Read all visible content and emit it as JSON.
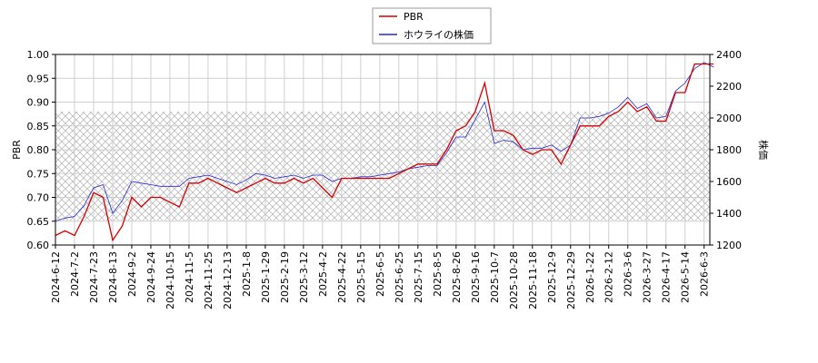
{
  "chart_data": {
    "type": "line",
    "categories": [
      "2024-6-12",
      null,
      "2024-7-2",
      null,
      "2024-7-23",
      null,
      "2024-8-13",
      null,
      "2024-9-2",
      null,
      "2024-9-24",
      null,
      "2024-10-15",
      null,
      "2024-11-5",
      null,
      "2024-11-25",
      null,
      "2024-12-13",
      null,
      "2025-1-8",
      null,
      "2025-1-29",
      null,
      "2025-2-19",
      null,
      "2025-3-12",
      null,
      "2025-4-2",
      null,
      "2025-4-22",
      null,
      "2025-5-15",
      null,
      "2025-6-5",
      null,
      "2025-6-25",
      null,
      "2025-7-15",
      null,
      "2025-8-5",
      null,
      "2025-8-26",
      null,
      "2025-9-16",
      null,
      "2025-10-7",
      null,
      "2025-10-28",
      null,
      "2025-11-18",
      null,
      "2025-12-9",
      null,
      "2025-12-29",
      null,
      "2026-1-22",
      null,
      "2026-2-12",
      null,
      "2026-3-6",
      null,
      "2026-3-27",
      null,
      "2026-4-17",
      null,
      "2026-5-14",
      null,
      "2026-6-3",
      null
    ],
    "series": [
      {
        "name": "PBR",
        "color": "#d40000",
        "axis": "y",
        "values": [
          0.62,
          0.63,
          0.62,
          0.66,
          0.71,
          0.7,
          0.61,
          0.64,
          0.7,
          0.68,
          0.7,
          0.7,
          0.69,
          0.68,
          0.73,
          0.73,
          0.74,
          0.73,
          0.72,
          0.71,
          0.72,
          0.73,
          0.74,
          0.73,
          0.73,
          0.74,
          0.73,
          0.74,
          0.72,
          0.7,
          0.74,
          0.74,
          0.74,
          0.74,
          0.74,
          0.74,
          0.75,
          0.76,
          0.77,
          0.77,
          0.77,
          0.8,
          0.84,
          0.85,
          0.88,
          0.94,
          0.84,
          0.84,
          0.83,
          0.8,
          0.79,
          0.8,
          0.8,
          0.77,
          0.81,
          0.85,
          0.85,
          0.85,
          0.87,
          0.88,
          0.9,
          0.88,
          0.89,
          0.86,
          0.86,
          0.92,
          0.92,
          0.98,
          0.98,
          0.98
        ]
      },
      {
        "name": "ホウライの株価",
        "color": "#2828d0",
        "axis": "y2",
        "values": [
          1350,
          1370,
          1380,
          1450,
          1560,
          1580,
          1400,
          1480,
          1600,
          1590,
          1580,
          1570,
          1570,
          1570,
          1620,
          1630,
          1640,
          1620,
          1600,
          1580,
          1610,
          1650,
          1640,
          1620,
          1630,
          1640,
          1620,
          1640,
          1640,
          1600,
          1620,
          1620,
          1630,
          1630,
          1640,
          1650,
          1660,
          1680,
          1690,
          1700,
          1700,
          1780,
          1880,
          1880,
          1990,
          2100,
          1840,
          1860,
          1850,
          1800,
          1810,
          1810,
          1830,
          1790,
          1830,
          2000,
          2000,
          2010,
          2030,
          2070,
          2130,
          2060,
          2090,
          2000,
          2010,
          2170,
          2220,
          2310,
          2350,
          2320
        ]
      }
    ],
    "y_label": "PBR",
    "y2_label": "株価",
    "ylim": [
      0.6,
      1.0
    ],
    "yticks": [
      {
        "value": 0.6,
        "label": "0.60"
      },
      {
        "value": 0.65,
        "label": "0.65"
      },
      {
        "value": 0.7,
        "label": "0.70"
      },
      {
        "value": 0.75,
        "label": "0.75"
      },
      {
        "value": 0.8,
        "label": "0.80"
      },
      {
        "value": 0.85,
        "label": "0.85"
      },
      {
        "value": 0.9,
        "label": "0.90"
      },
      {
        "value": 0.95,
        "label": "0.95"
      },
      {
        "value": 1.0,
        "label": "1.00"
      }
    ],
    "y2lim": [
      1200,
      2400
    ],
    "y2ticks": [
      1200,
      1400,
      1600,
      1800,
      2000,
      2200,
      2400
    ],
    "grid": true,
    "legend": "top"
  }
}
